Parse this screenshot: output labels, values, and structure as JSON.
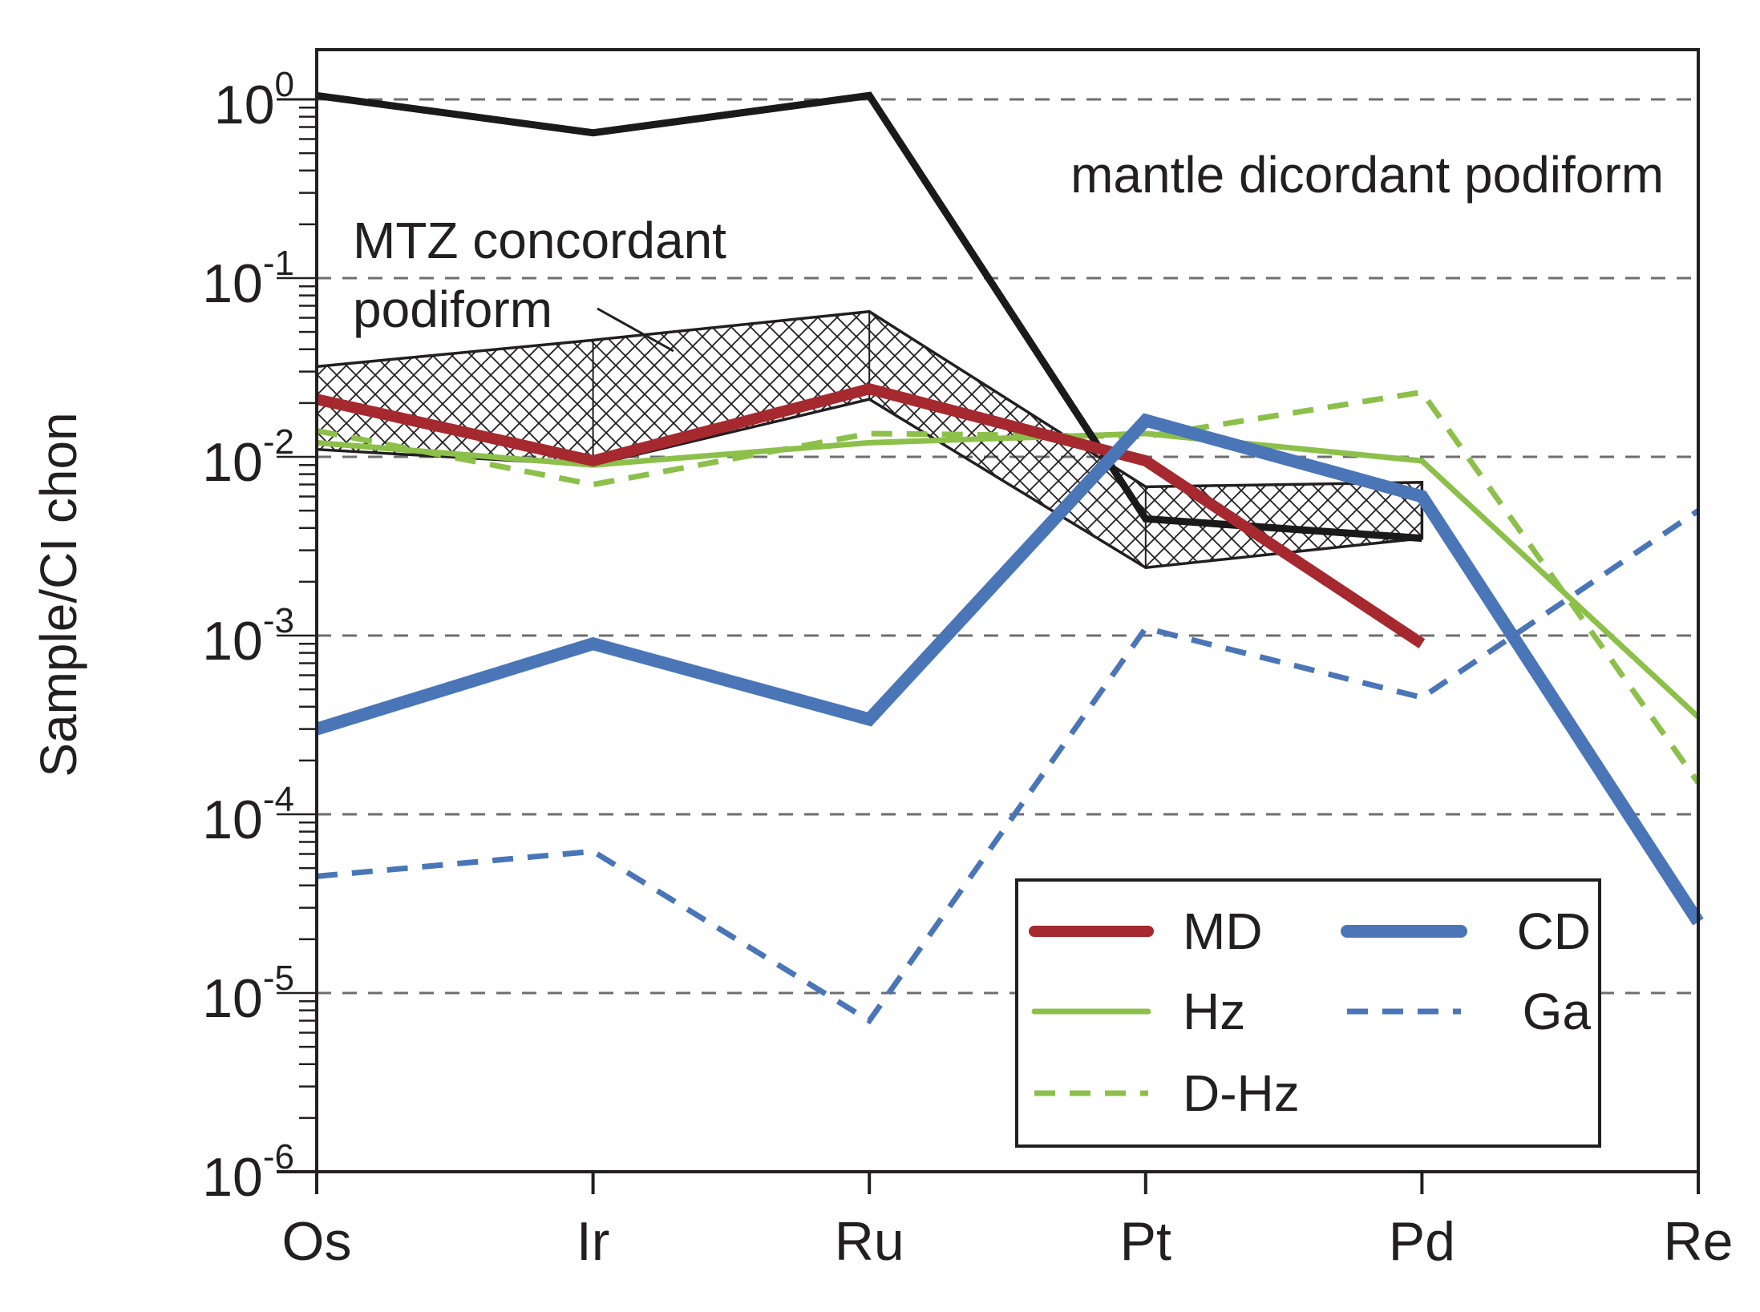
{
  "chart_data": {
    "type": "line",
    "title": "",
    "xlabel": "",
    "ylabel": "Sample/CI chon",
    "yscale": "log",
    "ylim": [
      1e-06,
      1
    ],
    "y_tick_exponents": [
      0,
      -1,
      -2,
      -3,
      -4,
      -5,
      -6
    ],
    "y_tick_base": "10",
    "grid": "dashed horizontal at each decade",
    "categories": [
      "Os",
      "Ir",
      "Ru",
      "Pt",
      "Pd",
      "Re"
    ],
    "envelope": {
      "name": "MTZ concordant podiform",
      "label_lines": [
        "MTZ concordant",
        "podiform"
      ],
      "upper": [
        0.032,
        0.045,
        0.065,
        0.0068,
        0.0072
      ],
      "lower": [
        0.011,
        0.009,
        0.021,
        0.0024,
        0.0035
      ]
    },
    "annotations": [
      {
        "text": "mantle dicordant podiform",
        "series": "mantle dicordant podiform"
      }
    ],
    "series": [
      {
        "name": "mantle dicordant podiform",
        "color": "#1a1a1a",
        "style": "solid",
        "values": [
          1.05,
          0.65,
          1.05,
          0.0045,
          0.0035,
          null
        ]
      },
      {
        "name": "MD",
        "color": "#a5292f",
        "style": "solid",
        "values": [
          0.021,
          0.0095,
          0.024,
          0.0095,
          0.0009,
          null
        ]
      },
      {
        "name": "Hz",
        "color": "#8cc04a",
        "style": "solid",
        "values": [
          0.012,
          0.009,
          0.012,
          0.0135,
          0.0095,
          0.00035
        ]
      },
      {
        "name": "D-Hz",
        "color": "#8cc04a",
        "style": "dashed",
        "values": [
          0.014,
          0.007,
          0.0135,
          0.013,
          0.023,
          0.00015
        ]
      },
      {
        "name": "CD",
        "color": "#4a76b8",
        "style": "solid",
        "values": [
          0.0003,
          0.0009,
          0.00034,
          0.016,
          0.006,
          2.5e-05
        ]
      },
      {
        "name": "Ga",
        "color": "#4a76b8",
        "style": "dashed",
        "values": [
          4.5e-05,
          6.2e-05,
          7e-06,
          0.0011,
          0.00045,
          0.005
        ]
      }
    ],
    "legend": {
      "placement": "bottom-right",
      "entries": [
        "MD",
        "CD",
        "Hz",
        "Ga",
        "D-Hz"
      ]
    }
  }
}
